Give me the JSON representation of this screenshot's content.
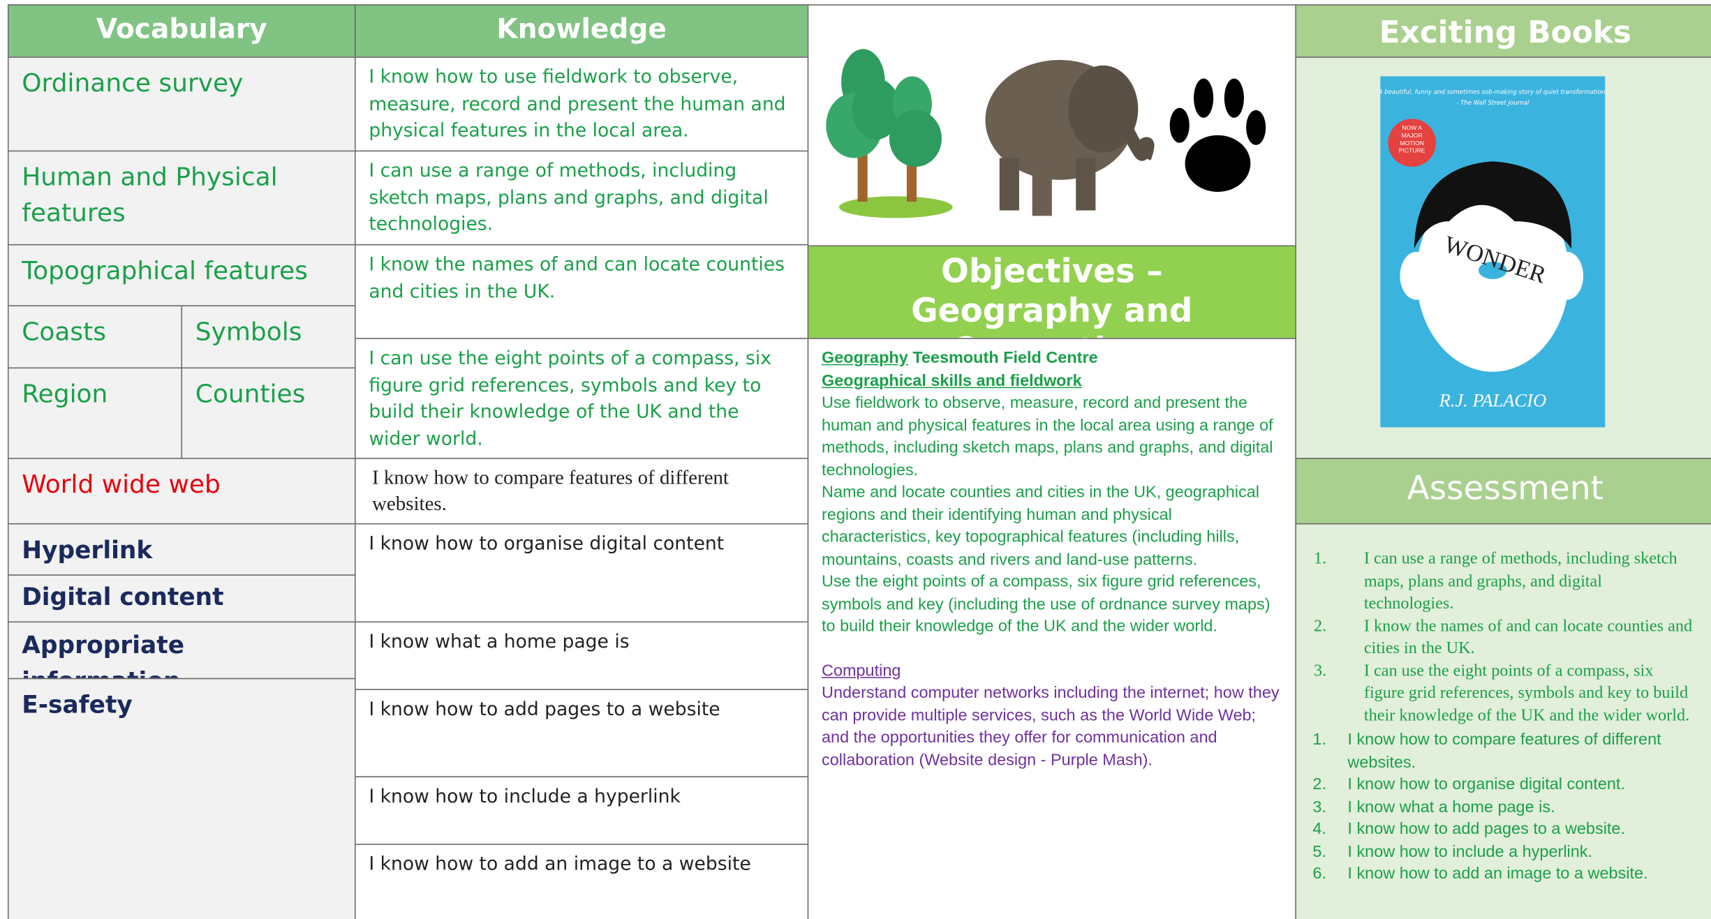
{
  "vocabulary": {
    "header": "Vocabulary",
    "terms": [
      "Ordinance survey",
      "Human and Physical features",
      "Topographical features",
      "Coasts",
      "Symbols",
      "Region",
      "Counties",
      "World wide web",
      "Hyperlink",
      "Digital content",
      "Appropriate information",
      "E-safety"
    ]
  },
  "knowledge": {
    "header": "Knowledge",
    "statements": [
      "I know how to use fieldwork to observe, measure, record and present the human and physical features in the local area.",
      "I can use a range of methods, including sketch maps, plans and graphs, and digital technologies.",
      "I know the names of and can locate counties and cities in the UK.",
      "I can use the eight points of a compass, six figure grid references, symbols and key to build their knowledge of the UK and the wider world.",
      "I know how to compare features of different websites.",
      "I know how to organise digital content",
      "I know what a home page is",
      "I know how to add pages to a website",
      "I know how to include a hyperlink",
      "I know how to add an image to a website"
    ]
  },
  "objectives": {
    "title": "Objectives – Geography and Computing",
    "geography": {
      "heading": "Geography",
      "place": "Teesmouth Field Centre",
      "subheading": "Geographical skills and fieldwork",
      "paragraphs": [
        "Use fieldwork to observe, measure, record and present the human and physical features in the local area using a range of methods, including sketch maps, plans and graphs, and digital technologies.",
        "Name and locate counties and cities in the UK, geographical regions and their identifying human and physical characteristics, key topographical features (including hills, mountains, coasts and rivers and land-use patterns.",
        "Use the eight points of a compass, six figure grid references, symbols and key (including the use of ordnance survey maps) to build their knowledge of the UK and the wider world."
      ]
    },
    "computing": {
      "heading": "Computing",
      "text": "Understand computer networks including the internet; how they can provide multiple services, such as the World Wide Web; and the opportunities they offer for communication and collaboration (Website design - Purple Mash)."
    }
  },
  "books": {
    "header": "Exciting Books",
    "cover": {
      "quote": "\"A beautiful, funny and sometimes sob-making story of quiet transformation.\"",
      "source": "- The Wall Street Journal",
      "badge": "NOW A MAJOR MOTION PICTURE",
      "title": "WONDER",
      "author": "R.J. PALACIO"
    }
  },
  "assessment": {
    "header": "Assessment",
    "geography": [
      {
        "number": "1.",
        "text": "I can use a range of methods, including sketch maps, plans and graphs, and digital technologies."
      },
      {
        "number": "2.",
        "text": "I know the names of and can locate counties and cities in the UK."
      },
      {
        "number": "3.",
        "text": "I can use the eight points of a compass, six figure grid references, symbols and key to build their knowledge of the UK and the wider world."
      }
    ],
    "computing": [
      {
        "number": "1.",
        "text": "I know how to compare features of different websites."
      },
      {
        "number": "2.",
        "text": "I know how to organise digital content."
      },
      {
        "number": "3.",
        "text": "I know what a home page is."
      },
      {
        "number": "4.",
        "text": "I know how to add pages to a website."
      },
      {
        "number": "5.",
        "text": "I know how to include a hyperlink."
      },
      {
        "number": "6.",
        "text": "I know how to add an image to a website."
      }
    ]
  }
}
